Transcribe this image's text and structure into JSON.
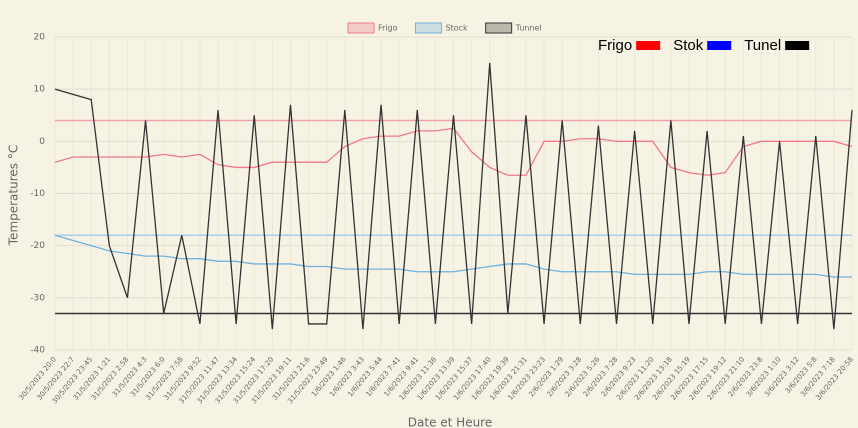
{
  "chart_data": {
    "type": "line",
    "y_label": "Temperatures °C",
    "x_label": "Date et Heure",
    "ylim": [
      -40,
      20
    ],
    "yticks": [
      -40,
      -30,
      -20,
      -10,
      0,
      10,
      20
    ],
    "grid": true,
    "legend": "top",
    "categories": [
      "30/5/2023 20:0",
      "30/5/2023 22:7",
      "30/5/2023 23:45",
      "31/5/2023 1:21",
      "31/5/2023 2:58",
      "31/5/2023 4:3",
      "31/5/2023 6:0",
      "31/5/2023 7:58",
      "31/5/2023 9:52",
      "31/5/2023 11:47",
      "31/5/2023 13:34",
      "31/5/2023 15:24",
      "31/5/2023 17:20",
      "31/5/2023 19:11",
      "31/5/2023 21:6",
      "31/5/2023 23:49",
      "1/6/2023 1:46",
      "1/6/2023 3:43",
      "1/6/2023 5:44",
      "1/6/2023 7:41",
      "1/6/2023 9:41",
      "1/6/2023 11:36",
      "1/6/2023 13:39",
      "1/6/2023 15:37",
      "1/6/2023 17:40",
      "1/6/2023 19:39",
      "1/6/2023 21:31",
      "1/6/2023 23:23",
      "2/6/2023 1:29",
      "2/6/2023 3:28",
      "2/6/2023 5:26",
      "2/6/2023 7:28",
      "2/6/2023 9:23",
      "2/6/2023 11:20",
      "2/6/2023 13:18",
      "2/6/2023 15:19",
      "2/6/2023 17:15",
      "2/6/2023 19:12",
      "2/6/2023 21:10",
      "2/6/2023 23:8",
      "3/6/2023 1:10",
      "3/6/2023 3:12",
      "3/6/2023 5:8",
      "3/6/2023 7:18",
      "3/6/2023 20:58"
    ],
    "series": [
      {
        "name": "Frigo",
        "color": "#f0788a",
        "values": [
          -4,
          -3,
          -3,
          -3,
          -3,
          -3,
          -2.5,
          -3,
          -2.5,
          -4.5,
          -5,
          -5,
          -4,
          -4,
          -4,
          -4,
          -1,
          0.5,
          1,
          1,
          2,
          2,
          2.5,
          -2,
          -5,
          -6.5,
          -6.5,
          0,
          0,
          0.5,
          0.5,
          0,
          0,
          0,
          -5,
          -6,
          -6.5,
          -6,
          -1,
          0,
          0,
          0,
          0,
          0,
          -1
        ]
      },
      {
        "name": "Stock",
        "color": "#6fb2e0",
        "values": [
          -18,
          -19,
          -20,
          -21,
          -21.5,
          -22,
          -22,
          -22.5,
          -22.5,
          -23,
          -23,
          -23.5,
          -23.5,
          -23.5,
          -24,
          -24,
          -24.5,
          -24.5,
          -24.5,
          -24.5,
          -25,
          -25,
          -25,
          -24.5,
          -24,
          -23.5,
          -23.5,
          -24.5,
          -25,
          -25,
          -25,
          -25,
          -25.5,
          -25.5,
          -25.5,
          -25.5,
          -25,
          -25,
          -25.5,
          -25.5,
          -25.5,
          -25.5,
          -25.5,
          -26,
          -26
        ]
      },
      {
        "name": "Tunnel",
        "color": "#333333",
        "values": [
          10,
          9,
          8,
          -20,
          -30,
          4,
          -33,
          -18,
          -35,
          6,
          -35,
          5,
          -36,
          7,
          -35,
          -35,
          6,
          -36,
          7,
          -35,
          6,
          -35,
          5,
          -35,
          15,
          -33,
          5,
          -35,
          4,
          -35,
          3,
          -35,
          2,
          -35,
          4,
          -35,
          2,
          -35,
          1,
          -35,
          0,
          -35,
          1,
          -36,
          6
        ]
      }
    ],
    "reference_lines": [
      {
        "value": 4,
        "color": "#f0a0aa"
      },
      {
        "value": -18,
        "color": "#a8d0ea"
      },
      {
        "value": -33,
        "color": "#333333"
      }
    ],
    "annotation_legend": [
      {
        "label": "Frigo",
        "color": "#ff0000"
      },
      {
        "label": "Stok",
        "color": "#0000ff"
      },
      {
        "label": "Tunel",
        "color": "#000000"
      }
    ]
  }
}
